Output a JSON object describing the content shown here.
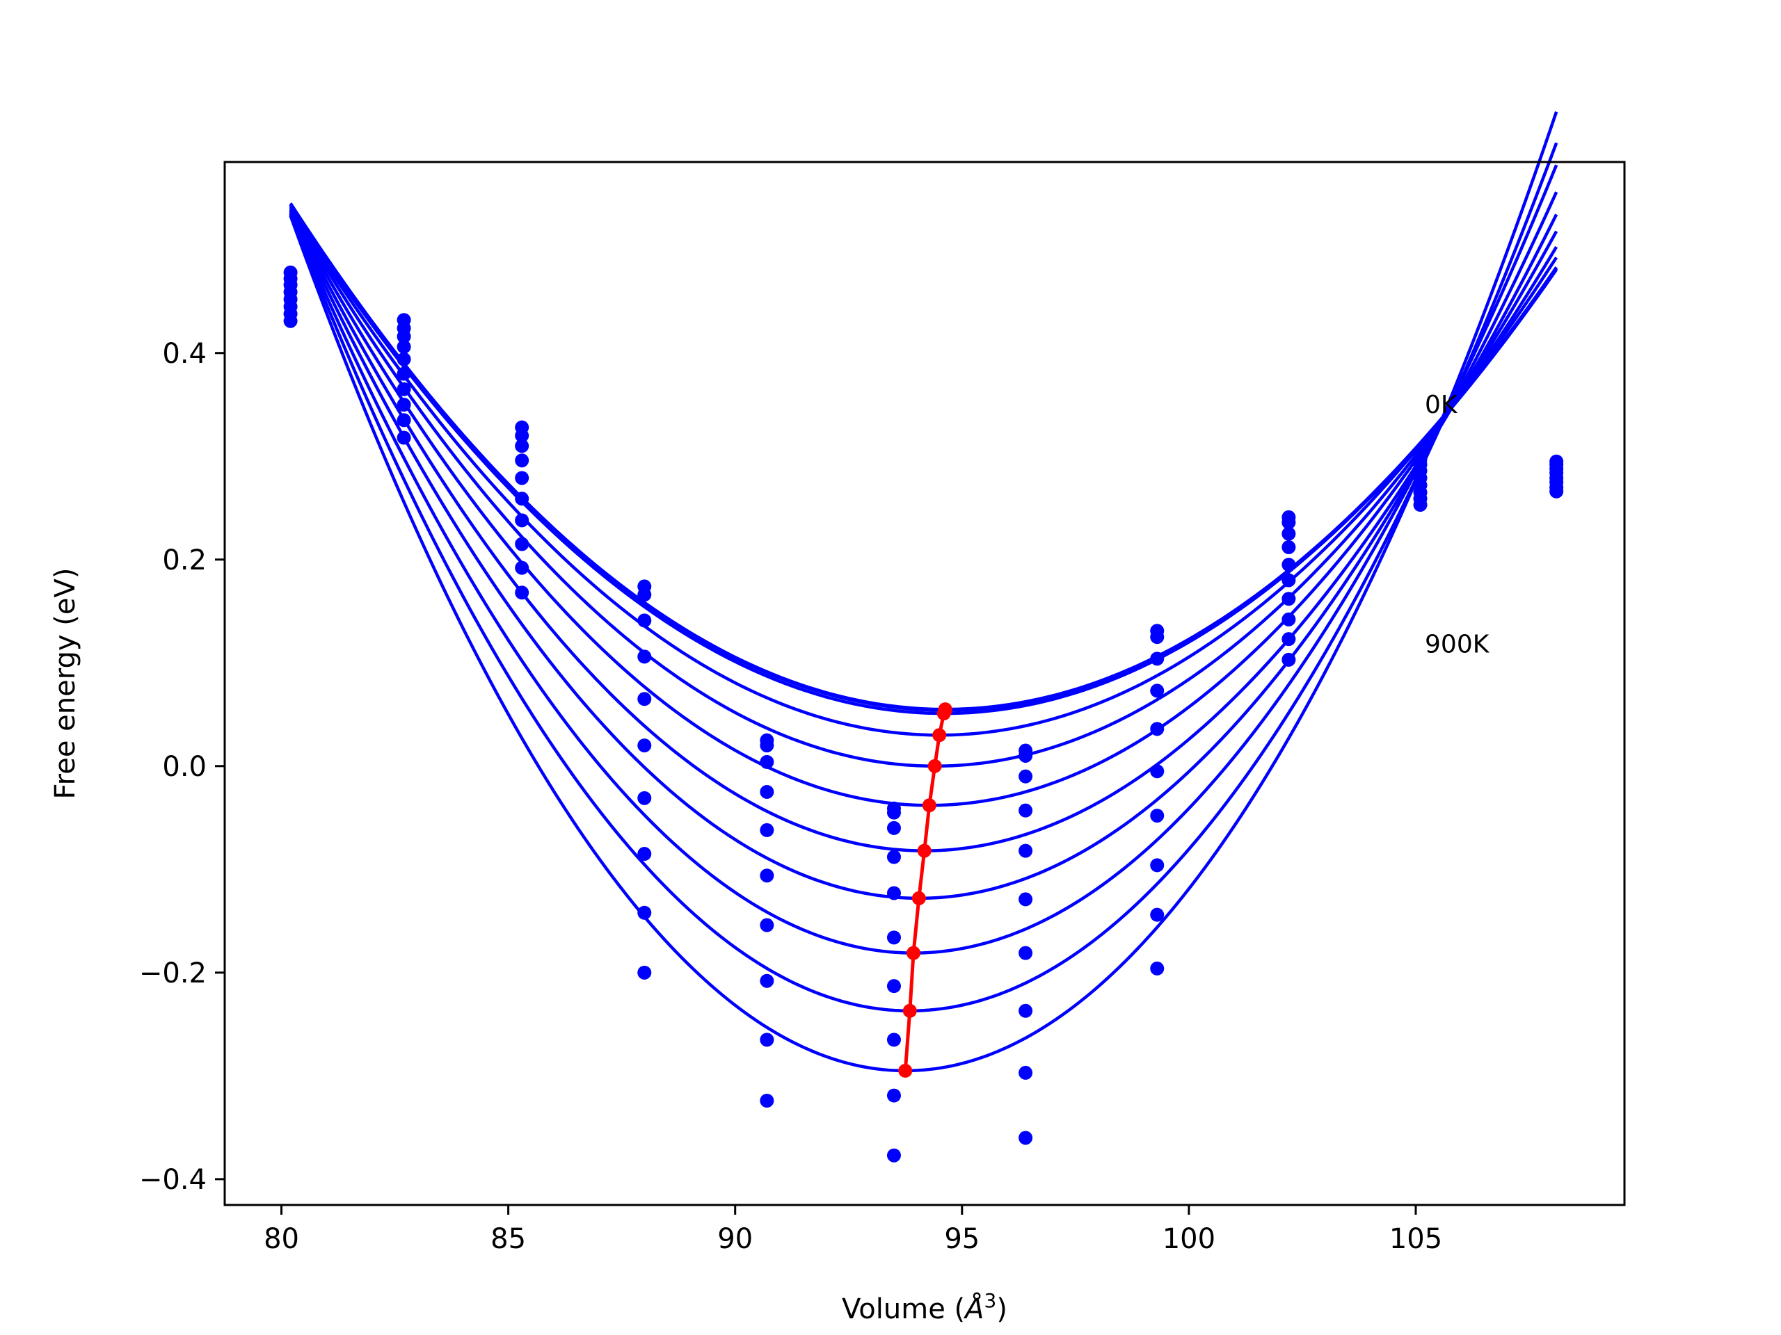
{
  "chart_data": {
    "type": "line",
    "title": "",
    "xlabel": "Volume (Å³)",
    "xlabel_base": "Volume (",
    "xlabel_unit": "Å",
    "xlabel_exp": "3",
    "xlabel_close": ")",
    "ylabel": "Free energy (eV)",
    "xlim": [
      78.75,
      109.6
    ],
    "ylim": [
      -0.425,
      0.585
    ],
    "x_ticks": [
      80,
      85,
      90,
      95,
      100,
      105
    ],
    "x_tick_labels": [
      "80",
      "85",
      "90",
      "95",
      "100",
      "105"
    ],
    "y_ticks": [
      -0.4,
      -0.2,
      0.0,
      0.2,
      0.4
    ],
    "y_tick_labels": [
      "−0.4",
      "−0.2",
      "0.0",
      "0.2",
      "0.4"
    ],
    "grid": false,
    "legend": "none",
    "colors": {
      "curves": "#0000ff",
      "points": "#0000ff",
      "minimum_path": "#ff0000",
      "axes": "#000000"
    },
    "annotations": [
      {
        "text": "0K",
        "x": 105.2,
        "y": 0.35
      },
      {
        "text": "900K",
        "x": 105.2,
        "y": 0.118
      }
    ],
    "volumes": [
      80.2,
      82.7,
      85.3,
      88.0,
      90.7,
      93.5,
      96.4,
      99.3,
      102.2,
      105.1,
      108.1
    ],
    "fit_curves": [
      {
        "temperature_index": 0,
        "v0": 94.63,
        "f0": 0.055
      },
      {
        "temperature_index": 1,
        "v0": 94.63,
        "f0": 0.054
      },
      {
        "temperature_index": 2,
        "v0": 94.6,
        "f0": 0.051
      },
      {
        "temperature_index": 3,
        "v0": 94.5,
        "f0": 0.03
      },
      {
        "temperature_index": 4,
        "v0": 94.4,
        "f0": 0.0
      },
      {
        "temperature_index": 5,
        "v0": 94.28,
        "f0": -0.038
      },
      {
        "temperature_index": 6,
        "v0": 94.17,
        "f0": -0.082
      },
      {
        "temperature_index": 7,
        "v0": 94.05,
        "f0": -0.128
      },
      {
        "temperature_index": 8,
        "v0": 93.93,
        "f0": -0.181
      },
      {
        "temperature_index": 9,
        "v0": 93.85,
        "f0": -0.237
      },
      {
        "temperature_index": 10,
        "v0": 93.75,
        "f0": -0.295
      }
    ],
    "points": [
      {
        "x": 80.2,
        "y": [
          0.478,
          0.472,
          0.466,
          0.459,
          0.452,
          0.445,
          0.438,
          0.431
        ]
      },
      {
        "x": 82.7,
        "y": [
          0.432,
          0.424,
          0.416,
          0.406,
          0.394,
          0.38,
          0.365,
          0.35,
          0.335,
          0.318
        ]
      },
      {
        "x": 85.3,
        "y": [
          0.328,
          0.32,
          0.31,
          0.296,
          0.279,
          0.259,
          0.238,
          0.215,
          0.192,
          0.168
        ]
      },
      {
        "x": 88.0,
        "y": [
          0.174,
          0.166,
          0.141,
          0.106,
          0.065,
          0.02,
          -0.031,
          -0.085,
          -0.142,
          -0.2
        ]
      },
      {
        "x": 90.7,
        "y": [
          0.025,
          0.02,
          0.004,
          -0.025,
          -0.062,
          -0.106,
          -0.154,
          -0.208,
          -0.265,
          -0.324
        ]
      },
      {
        "x": 93.5,
        "y": [
          -0.041,
          -0.045,
          -0.06,
          -0.088,
          -0.123,
          -0.166,
          -0.213,
          -0.265,
          -0.319,
          -0.377
        ]
      },
      {
        "x": 96.4,
        "y": [
          0.015,
          0.01,
          -0.01,
          -0.043,
          -0.082,
          -0.129,
          -0.181,
          -0.237,
          -0.297,
          -0.36
        ]
      },
      {
        "x": 99.3,
        "y": [
          0.131,
          0.125,
          0.104,
          0.073,
          0.036,
          -0.005,
          -0.048,
          -0.096,
          -0.144,
          -0.196
        ]
      },
      {
        "x": 102.2,
        "y": [
          0.241,
          0.236,
          0.225,
          0.212,
          0.195,
          0.18,
          0.162,
          0.142,
          0.123,
          0.103
        ]
      },
      {
        "x": 105.1,
        "y": [
          0.3,
          0.297,
          0.292,
          0.286,
          0.279,
          0.272,
          0.265,
          0.259,
          0.253
        ]
      },
      {
        "x": 108.1,
        "y": [
          0.295,
          0.292,
          0.288,
          0.284,
          0.279,
          0.275,
          0.27,
          0.266
        ]
      }
    ],
    "minimum_path": {
      "x": [
        93.75,
        93.85,
        93.93,
        94.05,
        94.17,
        94.28,
        94.4,
        94.5,
        94.6,
        94.63,
        94.63
      ],
      "y": [
        -0.295,
        -0.237,
        -0.181,
        -0.128,
        -0.082,
        -0.038,
        0.0,
        0.03,
        0.051,
        0.054,
        0.055
      ]
    }
  }
}
